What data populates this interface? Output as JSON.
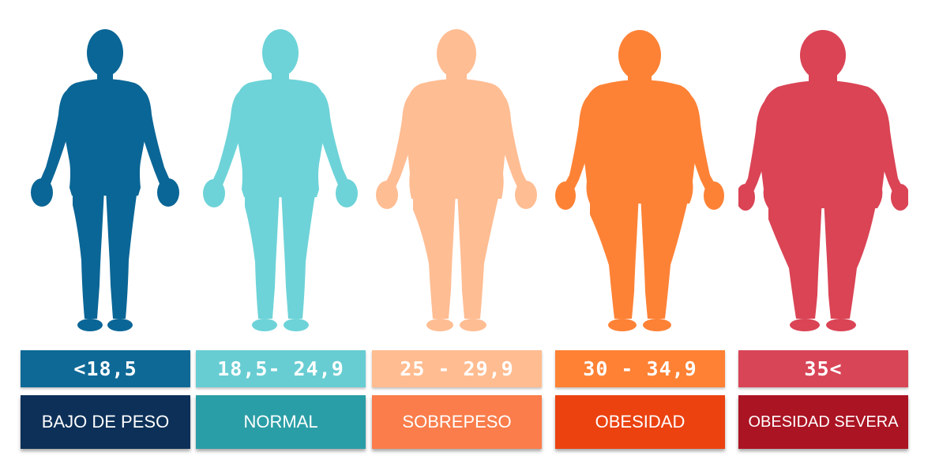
{
  "categories": [
    {
      "range": "<18,5",
      "label": "BAJO DE PESO",
      "figure_color": "#0a6696",
      "range_color": "#0e6997",
      "label_color": "#0c3058",
      "figure": "underweight-figure-icon"
    },
    {
      "range": "18,5- 24,9",
      "label": "NORMAL",
      "figure_color": "#6dd3d8",
      "range_color": "#67cdd2",
      "label_color": "#2a9ea6",
      "figure": "normal-figure-icon"
    },
    {
      "range": "25 - 29,9",
      "label": "SOBREPESO",
      "figure_color": "#ffbd93",
      "range_color": "#ffbc90",
      "label_color": "#fa7d4b",
      "figure": "overweight-figure-icon"
    },
    {
      "range": "30 - 34,9",
      "label": "OBESIDAD",
      "figure_color": "#fd8236",
      "range_color": "#fe8134",
      "label_color": "#eb4210",
      "figure": "obese-figure-icon"
    },
    {
      "range": "35<",
      "label": "OBESIDAD SEVERA",
      "figure_color": "#da4455",
      "range_color": "#d84557",
      "label_color": "#ab1423",
      "figure": "severe-obese-figure-icon"
    }
  ]
}
